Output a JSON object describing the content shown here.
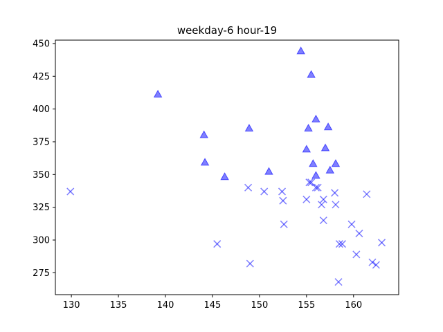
{
  "chart_data": {
    "type": "scatter",
    "title": "weekday-6 hour-19",
    "xlabel": "",
    "ylabel": "",
    "xlim": [
      128.3,
      164.8
    ],
    "ylim": [
      258.3,
      452.6
    ],
    "xticks": [
      130,
      135,
      140,
      145,
      150,
      155,
      160
    ],
    "yticks": [
      275,
      300,
      325,
      350,
      375,
      400,
      425,
      450
    ],
    "grid": false,
    "color": "#0000ff",
    "series": [
      {
        "marker": "triangle",
        "points": [
          [
            139.2,
            411
          ],
          [
            144.1,
            380
          ],
          [
            144.2,
            359
          ],
          [
            146.3,
            348
          ],
          [
            148.9,
            385
          ],
          [
            151.0,
            352
          ],
          [
            154.4,
            444
          ],
          [
            155.5,
            426
          ],
          [
            155.0,
            369
          ],
          [
            155.2,
            385
          ],
          [
            155.7,
            358
          ],
          [
            156.0,
            392
          ],
          [
            156.0,
            349
          ],
          [
            157.0,
            370
          ],
          [
            157.3,
            386
          ],
          [
            157.5,
            353
          ],
          [
            158.1,
            358
          ]
        ]
      },
      {
        "marker": "x",
        "points": [
          [
            129.9,
            337
          ],
          [
            145.5,
            297
          ],
          [
            148.8,
            340
          ],
          [
            149.0,
            282
          ],
          [
            150.5,
            337
          ],
          [
            152.4,
            337
          ],
          [
            152.5,
            330
          ],
          [
            152.6,
            312
          ],
          [
            155.0,
            331
          ],
          [
            155.3,
            344
          ],
          [
            155.5,
            344
          ],
          [
            156.0,
            340
          ],
          [
            156.2,
            340
          ],
          [
            156.6,
            327
          ],
          [
            156.8,
            331
          ],
          [
            156.8,
            315
          ],
          [
            158.0,
            336
          ],
          [
            158.1,
            327
          ],
          [
            158.4,
            268
          ],
          [
            158.5,
            297
          ],
          [
            158.8,
            297
          ],
          [
            159.8,
            312
          ],
          [
            160.3,
            289
          ],
          [
            160.6,
            305
          ],
          [
            161.4,
            335
          ],
          [
            162.0,
            283
          ],
          [
            162.4,
            281
          ],
          [
            163.0,
            298
          ]
        ]
      }
    ]
  }
}
